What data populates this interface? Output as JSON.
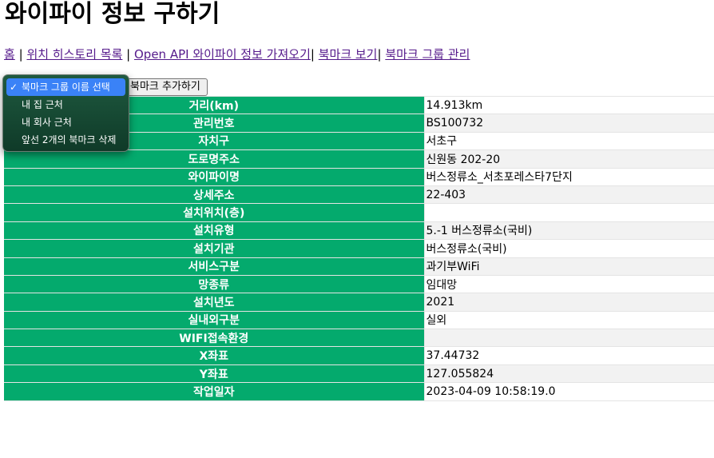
{
  "title": "와이파이 정보 구하기",
  "nav": {
    "links": [
      {
        "label": "홈"
      },
      {
        "label": "위치 히스토리 목록"
      },
      {
        "label": "Open API 와이파이 정보 가져오기"
      },
      {
        "label": "북마크 보기"
      },
      {
        "label": "북마크 그룹 관리"
      }
    ],
    "separator": "|"
  },
  "bookmark": {
    "add_button_label": "북마크 추가하기",
    "check_glyph": "✓",
    "options": [
      {
        "label": "북마크 그룹 이름 선택",
        "selected": true
      },
      {
        "label": "내 집 근처",
        "selected": false
      },
      {
        "label": "내 회사 근처",
        "selected": false
      },
      {
        "label": "앞선 2개의 북마크 삭제",
        "selected": false
      }
    ]
  },
  "details": {
    "rows": [
      {
        "label": "거리(km)",
        "value": "14.913km"
      },
      {
        "label": "관리번호",
        "value": "BS100732"
      },
      {
        "label": "자치구",
        "value": "서초구"
      },
      {
        "label": "도로명주소",
        "value": "신원동 202-20"
      },
      {
        "label": "와이파이명",
        "value": "버스정류소_서초포레스타7단지"
      },
      {
        "label": "상세주소",
        "value": "22-403"
      },
      {
        "label": "설치위치(층)",
        "value": ""
      },
      {
        "label": "설치유형",
        "value": "5.-1 버스정류소(국비)"
      },
      {
        "label": "설치기관",
        "value": "버스정류소(국비)"
      },
      {
        "label": "서비스구분",
        "value": "과기부WiFi"
      },
      {
        "label": "망종류",
        "value": "임대망"
      },
      {
        "label": "설치년도",
        "value": "2021"
      },
      {
        "label": "실내외구분",
        "value": "실외"
      },
      {
        "label": "WIFI접속환경",
        "value": ""
      },
      {
        "label": "X좌표",
        "value": "37.44732"
      },
      {
        "label": "Y좌표",
        "value": "127.055824"
      },
      {
        "label": "작업일자",
        "value": "2023-04-09 10:58:19.0"
      }
    ]
  }
}
